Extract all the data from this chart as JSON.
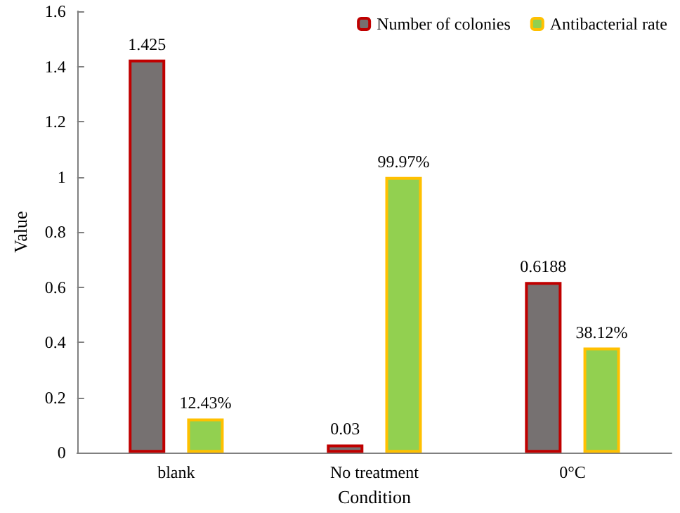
{
  "chart_data": {
    "type": "bar",
    "xlabel": "Condition",
    "ylabel": "Value",
    "categories": [
      "blank",
      "No treatment",
      "0°C"
    ],
    "series": [
      {
        "name": "Number of colonies",
        "color": "#767171",
        "values": [
          1.425,
          0.03,
          0.6188
        ],
        "value_labels": [
          "1.425",
          "0.03",
          "0.6188"
        ]
      },
      {
        "name": "Antibacterial rate",
        "color": "#92d050",
        "values": [
          0.1243,
          0.9997,
          0.3812
        ],
        "value_labels": [
          "12.43%",
          "99.97%",
          "38.12%"
        ]
      }
    ],
    "ylim": [
      0,
      1.6
    ],
    "yticks": [
      0,
      0.2,
      0.4,
      0.6,
      0.8,
      1,
      1.2,
      1.4,
      1.6
    ],
    "grid": false,
    "legend": "top right"
  }
}
